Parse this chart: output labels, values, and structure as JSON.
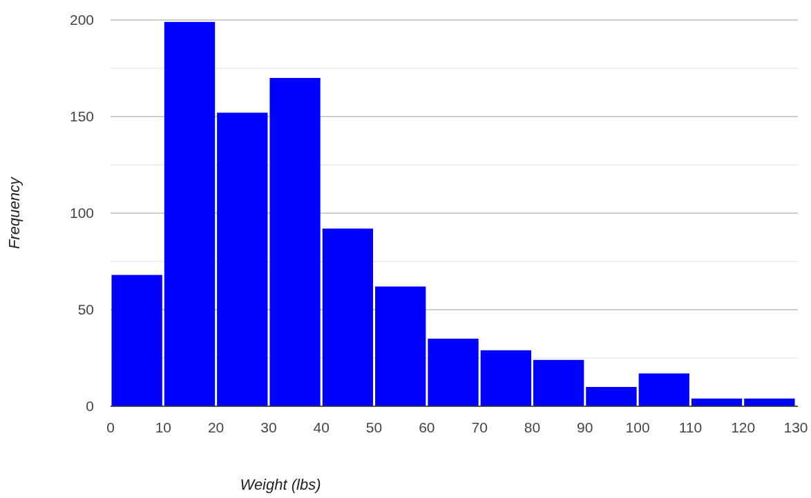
{
  "chart_data": {
    "type": "histogram",
    "xlabel": "Weight (lbs)",
    "ylabel": "Frequency",
    "bins": [
      0,
      10,
      20,
      30,
      40,
      50,
      60,
      70,
      80,
      90,
      100,
      110,
      120,
      130
    ],
    "values": [
      68,
      199,
      152,
      170,
      92,
      62,
      35,
      29,
      24,
      10,
      17,
      4,
      4
    ],
    "color": "#0000ff",
    "xlim": [
      0,
      130
    ],
    "xticks": [
      0,
      10,
      20,
      30,
      40,
      50,
      60,
      70,
      80,
      90,
      100,
      110,
      120,
      130
    ],
    "ylim": [
      0,
      200
    ],
    "yticks": [
      0,
      {
        "value": 25,
        "label": null
      },
      50,
      {
        "value": 75,
        "label": null
      },
      100,
      {
        "value": 125,
        "label": null
      },
      150,
      {
        "value": 175,
        "label": null
      },
      200
    ],
    "grid": "y"
  }
}
